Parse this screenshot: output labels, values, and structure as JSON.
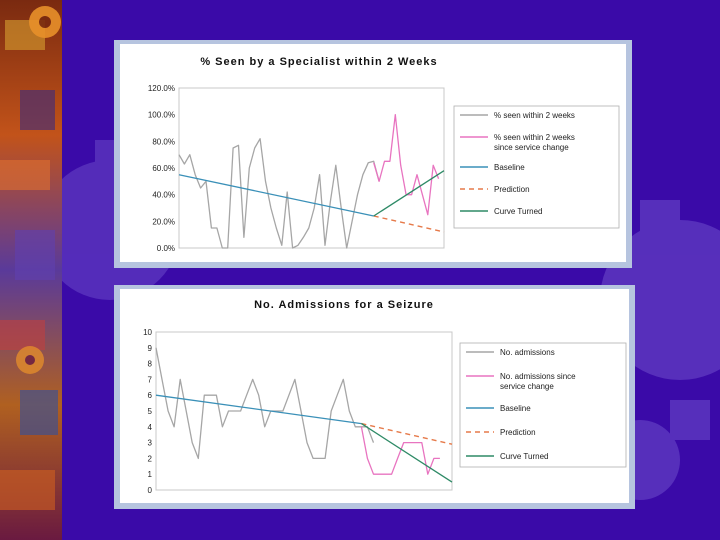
{
  "chart_data": [
    {
      "type": "line",
      "title": "% Seen by a Specialist within 2 Weeks",
      "ylim": [
        0,
        120
      ],
      "yticks": [
        "120.0%",
        "100.0%",
        "80.0%",
        "60.0%",
        "40.0%",
        "20.0%",
        "0.0%"
      ],
      "ytick_values": [
        120,
        100,
        80,
        60,
        40,
        20,
        0
      ],
      "n_points": 50,
      "series": [
        {
          "name": "% seen within 2 weeks",
          "color": "#a6a6a6",
          "x": [
            0,
            1,
            2,
            3,
            4,
            5,
            6,
            7,
            8,
            9,
            10,
            11,
            12,
            13,
            14,
            15,
            16,
            17,
            18,
            19,
            20,
            21,
            22,
            23,
            24,
            25,
            26,
            27,
            28,
            29,
            30,
            31,
            32,
            33,
            34,
            35,
            36,
            37
          ],
          "values": [
            70,
            63,
            70,
            55,
            45,
            50,
            15,
            15,
            0,
            0,
            75,
            77,
            8,
            60,
            75,
            82,
            50,
            30,
            15,
            2,
            42,
            0,
            2,
            8,
            15,
            30,
            55,
            2,
            35,
            62,
            30,
            0,
            20,
            40,
            55,
            64,
            65,
            50
          ]
        },
        {
          "name": "% seen within 2 weeks since service change",
          "color": "#e874c0",
          "x": [
            36,
            37,
            38,
            39,
            40,
            41,
            42,
            43,
            44,
            45,
            46,
            47,
            48
          ],
          "values": [
            64,
            50,
            65,
            65,
            100,
            62,
            40,
            40,
            55,
            40,
            25,
            62,
            52
          ]
        },
        {
          "name": "Baseline",
          "color": "#3a90b8",
          "x": [
            0,
            36
          ],
          "values": [
            55,
            24
          ]
        },
        {
          "name": "Prediction",
          "color": "#e67a4a",
          "dashed": true,
          "x": [
            36,
            49
          ],
          "values": [
            24,
            12
          ]
        },
        {
          "name": "Curve Turned",
          "color": "#2e8a66",
          "x": [
            36,
            49
          ],
          "values": [
            24,
            58
          ]
        }
      ]
    },
    {
      "type": "line",
      "title": "No. Admissions for a Seizure",
      "ylim": [
        0,
        10
      ],
      "yticks": [
        "10",
        "9",
        "8",
        "7",
        "6",
        "5",
        "4",
        "3",
        "2",
        "1",
        "0"
      ],
      "ytick_values": [
        10,
        9,
        8,
        7,
        6,
        5,
        4,
        3,
        2,
        1,
        0
      ],
      "n_points": 50,
      "series": [
        {
          "name": "No. admissions",
          "color": "#a6a6a6",
          "x": [
            0,
            1,
            2,
            3,
            4,
            5,
            6,
            7,
            8,
            9,
            10,
            11,
            12,
            13,
            14,
            15,
            16,
            17,
            18,
            19,
            20,
            21,
            22,
            23,
            24,
            25,
            26,
            27,
            28,
            29,
            30,
            31,
            32,
            33,
            34,
            35,
            36
          ],
          "values": [
            9,
            7,
            5,
            4,
            7,
            5,
            3,
            2,
            6,
            6,
            6,
            4,
            5,
            5,
            5,
            6,
            7,
            6,
            4,
            5,
            5,
            5,
            6,
            7,
            5,
            3,
            2,
            2,
            2,
            5,
            6,
            7,
            5,
            4,
            4,
            4,
            3
          ]
        },
        {
          "name": "No. admissions since service change",
          "color": "#e874c0",
          "x": [
            34,
            35,
            36,
            37,
            38,
            39,
            40,
            41,
            42,
            43,
            44,
            45,
            46,
            47
          ],
          "values": [
            4,
            2,
            1,
            1,
            1,
            1,
            2,
            3,
            3,
            3,
            3,
            1,
            2,
            2
          ]
        },
        {
          "name": "Baseline",
          "color": "#3a90b8",
          "x": [
            0,
            34
          ],
          "values": [
            6,
            4.2
          ]
        },
        {
          "name": "Prediction",
          "color": "#e67a4a",
          "dashed": true,
          "x": [
            34,
            49
          ],
          "values": [
            4.2,
            2.9
          ]
        },
        {
          "name": "Curve Turned",
          "color": "#2e8a66",
          "x": [
            34,
            49
          ],
          "values": [
            4.2,
            0.5
          ]
        }
      ]
    }
  ],
  "legend_labels": {
    "top": [
      "% seen within 2 weeks",
      "% seen within 2 weeks",
      "since service change",
      "Baseline",
      "Prediction",
      "Curve Turned"
    ],
    "bottom": [
      "No. admissions",
      "No. admissions since",
      "service change",
      "Baseline",
      "Prediction",
      "Curve Turned"
    ]
  }
}
